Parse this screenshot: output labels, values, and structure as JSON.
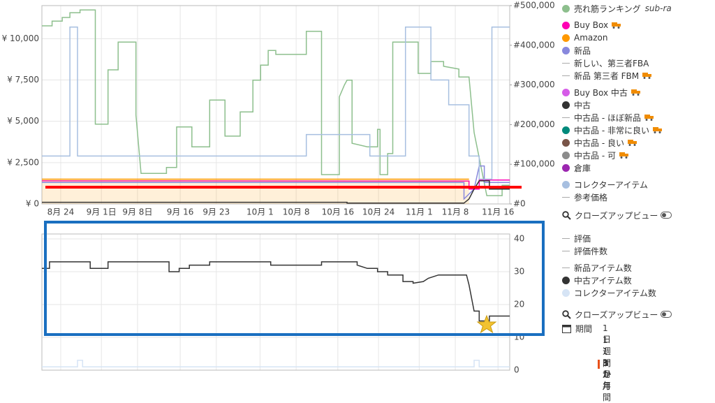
{
  "chart_data": [
    {
      "type": "line",
      "xlim": [
        0,
        92
      ],
      "xticks": [
        {
          "value": 3.7,
          "label": "8月 24"
        },
        {
          "value": 11.7,
          "label": "9月 1日"
        },
        {
          "value": 18.8,
          "label": "9月 8日"
        },
        {
          "value": 27.2,
          "label": "9月 16"
        },
        {
          "value": 34.3,
          "label": "9月 23"
        },
        {
          "value": 42.9,
          "label": "10月 1"
        },
        {
          "value": 50,
          "label": "10月 8"
        },
        {
          "value": 58.2,
          "label": "10月 16"
        },
        {
          "value": 66.2,
          "label": "10月 24"
        },
        {
          "value": 74.2,
          "label": "11月 1"
        },
        {
          "value": 81.3,
          "label": "11月 8"
        },
        {
          "value": 89.7,
          "label": "11月 16"
        }
      ],
      "ylim": [
        0,
        12000
      ],
      "yticks": [
        {
          "value": 0,
          "label": "¥ 0"
        },
        {
          "value": 2500,
          "label": "¥ 2,500"
        },
        {
          "value": 5000,
          "label": "¥ 5,000"
        },
        {
          "value": 7500,
          "label": "¥ 7,500"
        },
        {
          "value": 10000,
          "label": "¥ 10,000"
        }
      ],
      "y2lim": [
        0,
        500000
      ],
      "y2ticks": [
        {
          "value": 0,
          "label": "#0"
        },
        {
          "value": 100000,
          "label": "#100,000"
        },
        {
          "value": 200000,
          "label": "#200,000"
        },
        {
          "value": 300000,
          "label": "#300,000"
        },
        {
          "value": 400000,
          "label": "#400,000"
        },
        {
          "value": 500000,
          "label": "#500,000"
        }
      ],
      "grid": true,
      "series": [
        {
          "name": "売れ筋ランキング",
          "color": "#8dbf8d",
          "marker": "circle",
          "axis": "y2",
          "sub": "sub-ra",
          "x": [
            0,
            2,
            2,
            4,
            4,
            5.5,
            5.5,
            7.5,
            7.5,
            10.5,
            10.5,
            13,
            13,
            15,
            15,
            18.5,
            18.5,
            19.5,
            24.5,
            24.5,
            26.5,
            26.5,
            29.5,
            29.5,
            33,
            33,
            36,
            36,
            39,
            39,
            41.5,
            41.5,
            43,
            43,
            44.5,
            44.5,
            46,
            46,
            52,
            52,
            55,
            55,
            58.5,
            58.5,
            59.5,
            60,
            61,
            61,
            64,
            66,
            66,
            66.5,
            66.5,
            68,
            68,
            69,
            69,
            74,
            74,
            76.5,
            76.5,
            79,
            79,
            82,
            82,
            84,
            85,
            87.5,
            90.5,
            90.5,
            92
          ],
          "values": [
            449000,
            449000,
            461000,
            461000,
            470000,
            470000,
            482000,
            482000,
            489000,
            489000,
            201000,
            201000,
            338000,
            338000,
            408000,
            408000,
            224000,
            77000,
            77000,
            92000,
            92000,
            194000,
            194000,
            144000,
            144000,
            262000,
            262000,
            171000,
            171000,
            232000,
            232000,
            312000,
            312000,
            350000,
            350000,
            387000,
            387000,
            377000,
            377000,
            435000,
            435000,
            74000,
            74000,
            270000,
            300000,
            312000,
            312000,
            153000,
            144000,
            144000,
            188000,
            188000,
            74000,
            74000,
            127000,
            127000,
            408000,
            408000,
            329000,
            329000,
            359000,
            359000,
            347000,
            340000,
            320000,
            320000,
            180000,
            21000,
            21000,
            47000,
            47000
          ]
        },
        {
          "name": "Buy Box",
          "color": "#ff00b4",
          "marker": "circle",
          "truck": true,
          "x": [
            0,
            84,
            84,
            86,
            86,
            92
          ],
          "values": [
            1400,
            1380,
            900,
            900,
            1450,
            1450
          ]
        },
        {
          "name": "Amazon",
          "color": "#ff9900",
          "marker": "circle",
          "fill": true,
          "x": [
            0,
            84
          ],
          "values": [
            1500,
            1500
          ]
        },
        {
          "name": "新品",
          "color": "#8888dd",
          "marker": "circle",
          "x": [
            0,
            83,
            83,
            85,
            86,
            87,
            87,
            92
          ],
          "values": [
            1300,
            1300,
            300,
            900,
            2300,
            2300,
            1300,
            1300
          ]
        },
        {
          "name": "新しい、第三者FBA",
          "color": "#bbbbbb",
          "marker": "line"
        },
        {
          "name": "新品 第三者 FBM",
          "color": "#bbbbbb",
          "marker": "line",
          "truck": true
        },
        {
          "name": "Buy Box 中古",
          "color": "#d65ce8",
          "marker": "circle",
          "truck": true
        },
        {
          "name": "中古",
          "color": "#333333",
          "marker": "circle",
          "x": [
            0,
            60,
            60,
            83,
            84,
            85,
            86,
            88,
            88,
            92
          ],
          "values": [
            100,
            100,
            50,
            50,
            300,
            900,
            1400,
            1400,
            900,
            900
          ]
        },
        {
          "name": "中古品 - ほぼ新品",
          "color": "#bbbbbb",
          "marker": "line",
          "truck": true
        },
        {
          "name": "中古品 - 非常に良い",
          "color": "#00897b",
          "marker": "circle",
          "truck": true
        },
        {
          "name": "中古品 - 良い",
          "color": "#795548",
          "marker": "circle",
          "truck": true
        },
        {
          "name": "中古品 - 可",
          "color": "#8c8c8c",
          "marker": "circle",
          "truck": true
        },
        {
          "name": "倉庫",
          "color": "#9c27b0",
          "marker": "circle"
        },
        {
          "name": "コレクターアイテム",
          "color": "#a7bfe0",
          "marker": "circle",
          "x": [
            0,
            5.5,
            5.5,
            7,
            7,
            52,
            52,
            64.5,
            64.5,
            71.5,
            71.5,
            76.5,
            76.5,
            80,
            80,
            84,
            84,
            86,
            86,
            88.5,
            88.5,
            92
          ],
          "values": [
            2900,
            2900,
            10700,
            10700,
            2900,
            2900,
            4200,
            4200,
            2900,
            2900,
            10700,
            10700,
            7500,
            7500,
            6000,
            6000,
            2900,
            2900,
            1500,
            1500,
            10700,
            10700
          ]
        },
        {
          "name": "参考価格",
          "color": "#bbbbbb",
          "marker": "line"
        }
      ]
    },
    {
      "type": "line",
      "xlim": [
        0,
        92
      ],
      "ylim": [
        0,
        41.5
      ],
      "yticks": [
        0,
        10,
        20,
        30,
        40
      ],
      "grid": true,
      "series": [
        {
          "name": "評価",
          "color": "#bbbbbb",
          "marker": "line"
        },
        {
          "name": "評価件数",
          "color": "#bbbbbb",
          "marker": "line"
        },
        {
          "name": "新品アイテム数",
          "color": "#bbbbbb",
          "marker": "line"
        },
        {
          "name": "中古アイテム数",
          "color": "#333333",
          "marker": "circle",
          "x": [
            0,
            1.5,
            1.5,
            9.5,
            9.5,
            13,
            13,
            25,
            25,
            27,
            27,
            29,
            29,
            33,
            33,
            45,
            45,
            55,
            55,
            62,
            62,
            64,
            66,
            66,
            68,
            68,
            71,
            71,
            73,
            73,
            75,
            76,
            78,
            83.5,
            84,
            85,
            86,
            86,
            88,
            88,
            92
          ],
          "values": [
            31,
            31,
            33,
            33,
            31,
            31,
            33,
            33,
            30,
            30,
            31,
            31,
            32,
            32,
            33,
            33,
            32,
            32,
            33,
            33,
            32,
            31,
            31,
            30,
            30,
            29,
            29,
            27,
            27,
            26.5,
            27,
            28,
            29,
            29,
            26,
            18,
            18,
            15,
            15,
            16.5,
            16.5
          ]
        },
        {
          "name": "コレクターアイテム数",
          "color": "#d6e4f5",
          "marker": "circle",
          "x": [
            0,
            7,
            7,
            8,
            8,
            85,
            85,
            86,
            86,
            92
          ],
          "values": [
            1,
            1,
            3,
            3,
            1,
            1,
            3,
            3,
            1,
            1
          ]
        }
      ]
    }
  ],
  "controls": {
    "closeup_top": "クローズアップビュー",
    "closeup_bottom": "クローズアップビュー",
    "period_label": "期間",
    "period_options": [
      "1日",
      "1週間",
      "1ヶ月",
      "3か月",
      "1年間"
    ],
    "selected": 3
  }
}
